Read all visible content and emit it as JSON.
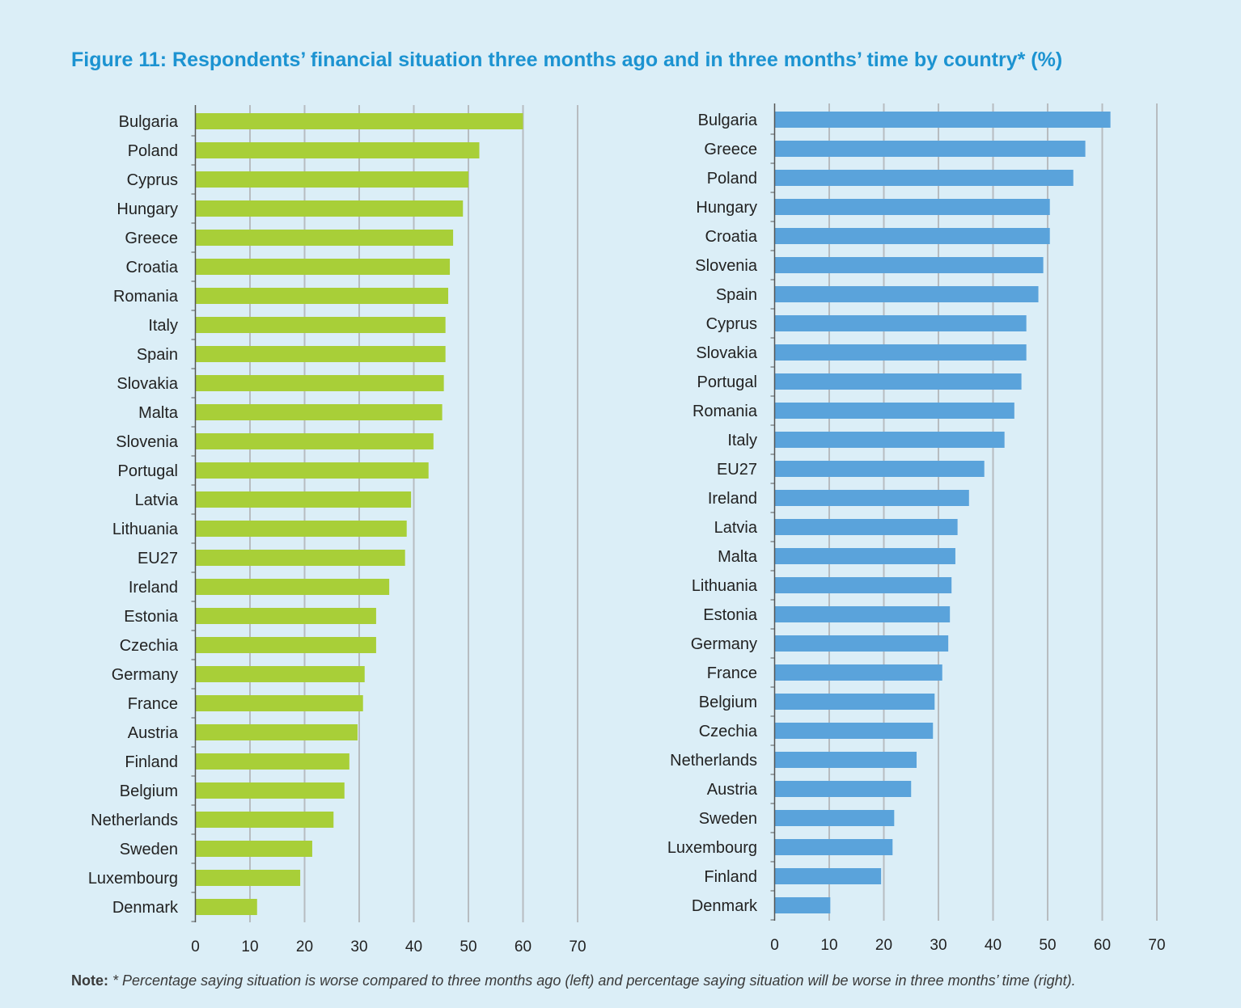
{
  "title": "Figure 11: Respondents’ financial situation three months ago and in three months’ time by country* (%)",
  "note": {
    "label": "Note:",
    "text": "* Percentage saying situation is worse compared to three months ago (left) and percentage saying situation will be worse in three months’ time (right)."
  },
  "colors": {
    "background": "#dbeef7",
    "title": "#1c93d1",
    "left_bars": "#a8cf38",
    "right_bars": "#5aa3db",
    "gridline": "#b7bcc0"
  },
  "chart_data": [
    {
      "type": "bar",
      "orientation": "horizontal",
      "xlim": [
        0,
        70
      ],
      "ticks": [
        0,
        10,
        20,
        30,
        40,
        50,
        60,
        70
      ],
      "grid": true,
      "categories": [
        "Bulgaria",
        "Poland",
        "Cyprus",
        "Hungary",
        "Greece",
        "Croatia",
        "Romania",
        "Italy",
        "Spain",
        "Slovakia",
        "Malta",
        "Slovenia",
        "Portugal",
        "Latvia",
        "Lithuania",
        "EU27",
        "Ireland",
        "Estonia",
        "Czechia",
        "Germany",
        "France",
        "Austria",
        "Finland",
        "Belgium",
        "Netherlands",
        "Sweden",
        "Luxembourg",
        "Denmark"
      ],
      "values": [
        60,
        52,
        50,
        49,
        47.2,
        46.6,
        46.3,
        45.8,
        45.8,
        45.5,
        45.2,
        43.6,
        42.7,
        39.5,
        38.7,
        38.4,
        35.5,
        33.1,
        33.1,
        31,
        30.7,
        29.7,
        28.2,
        27.3,
        25.3,
        21.4,
        19.2,
        11.3
      ]
    },
    {
      "type": "bar",
      "orientation": "horizontal",
      "xlim": [
        0,
        70
      ],
      "ticks": [
        0,
        10,
        20,
        30,
        40,
        50,
        60,
        70
      ],
      "grid": true,
      "categories": [
        "Bulgaria",
        "Greece",
        "Poland",
        "Hungary",
        "Croatia",
        "Slovenia",
        "Spain",
        "Cyprus",
        "Slovakia",
        "Portugal",
        "Romania",
        "Italy",
        "EU27",
        "Ireland",
        "Latvia",
        "Malta",
        "Lithuania",
        "Estonia",
        "Germany",
        "France",
        "Belgium",
        "Czechia",
        "Netherlands",
        "Austria",
        "Sweden",
        "Luxembourg",
        "Finland",
        "Denmark"
      ],
      "values": [
        61.5,
        56.9,
        54.7,
        50.4,
        50.4,
        49.2,
        48.3,
        46.1,
        46.1,
        45.2,
        43.9,
        42.1,
        38.4,
        35.6,
        33.5,
        33.1,
        32.4,
        32.1,
        31.8,
        30.7,
        29.3,
        29,
        26,
        25,
        21.9,
        21.6,
        19.5,
        10.2
      ]
    }
  ]
}
